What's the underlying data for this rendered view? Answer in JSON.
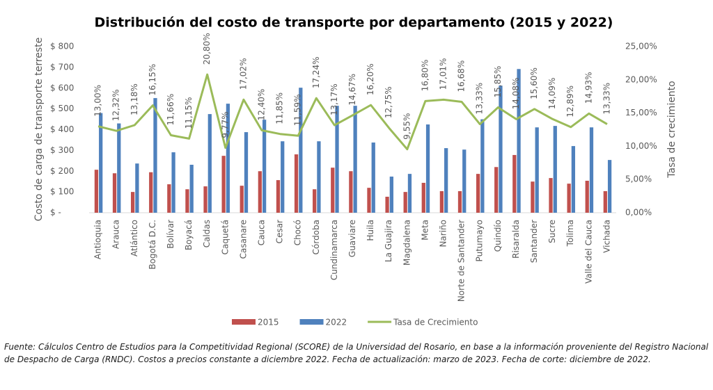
{
  "chart_data": {
    "type": "bar-line",
    "title": "Distribución del costo de transporte por departamento (2015 y 2022)",
    "y_label": "Costo de carga de transporte terreste",
    "y2_label": "Tasa de crecimiento",
    "categories": [
      "Antioquia",
      "Arauca",
      "Atlántico",
      "Bogotá D.C.",
      "Bolívar",
      "Boyacá",
      "Caldas",
      "Caquetá",
      "Casanare",
      "Cauca",
      "Cesar",
      "Chocó",
      "Córdoba",
      "Cundinamarca",
      "Guaviare",
      "Huila",
      "La Guajira",
      "Magdalena",
      "Meta",
      "Nariño",
      "Norte de Santander",
      "Putumayo",
      "Quindío",
      "Risaralda",
      "Santander",
      "Sucre",
      "Tolima",
      "Valle del Cauca",
      "Vichada"
    ],
    "ylim": [
      0,
      800
    ],
    "yticks": [
      {
        "value": 0,
        "label": "$ -"
      },
      {
        "value": 100,
        "label": "$ 100"
      },
      {
        "value": 200,
        "label": "$ 200"
      },
      {
        "value": 300,
        "label": "$ 300"
      },
      {
        "value": 400,
        "label": "$ 400"
      },
      {
        "value": 500,
        "label": "$ 500"
      },
      {
        "value": 600,
        "label": "$ 600"
      },
      {
        "value": 700,
        "label": "$ 700"
      },
      {
        "value": 800,
        "label": "$ 800"
      }
    ],
    "y2lim": [
      0,
      25
    ],
    "y2ticks": [
      {
        "value": 0,
        "label": "0,00%"
      },
      {
        "value": 5,
        "label": "5,00%"
      },
      {
        "value": 10,
        "label": "10,00%"
      },
      {
        "value": 15,
        "label": "15,00%"
      },
      {
        "value": 20,
        "label": "20,00%"
      },
      {
        "value": 25,
        "label": "25,00%"
      }
    ],
    "series": [
      {
        "name": "2015",
        "color": "#c0504d",
        "kind": "bar",
        "values": [
          207,
          190,
          100,
          195,
          137,
          113,
          127,
          274,
          130,
          200,
          157,
          281,
          113,
          217,
          200,
          120,
          77,
          100,
          144,
          104,
          104,
          187,
          220,
          278,
          150,
          167,
          140,
          154,
          104
        ]
      },
      {
        "name": "2022",
        "color": "#4f81bd",
        "kind": "bar",
        "values": [
          480,
          430,
          237,
          552,
          291,
          231,
          475,
          525,
          388,
          448,
          344,
          602,
          344,
          515,
          515,
          338,
          174,
          187,
          425,
          311,
          304,
          450,
          612,
          692,
          411,
          418,
          321,
          411,
          254
        ]
      },
      {
        "name": "Tasa de Crecimiento",
        "color": "#9bbb59",
        "kind": "line",
        "axis": "y2",
        "values": [
          13.0,
          12.32,
          13.18,
          16.15,
          11.66,
          11.15,
          20.8,
          9.77,
          17.02,
          12.4,
          11.85,
          11.59,
          17.24,
          13.17,
          14.67,
          16.2,
          12.75,
          9.55,
          16.8,
          17.01,
          16.68,
          13.33,
          15.85,
          14.08,
          15.6,
          14.09,
          12.89,
          14.93,
          13.33
        ],
        "value_labels": [
          "13,00%",
          "12,32%",
          "13,18%",
          "16,15%",
          "11,66%",
          "11,15%",
          "20,80%",
          "9,77%",
          "17,02%",
          "12,40%",
          "11,85%",
          "11,59%",
          "17,24%",
          "13,17%",
          "14,67%",
          "16,20%",
          "12,75%",
          "9,55%",
          "16,80%",
          "17,01%",
          "16,68%",
          "13,33%",
          "15,85%",
          "14,08%",
          "15,60%",
          "14,09%",
          "12,89%",
          "14,93%",
          "13,33%"
        ]
      }
    ],
    "note": "Fuente: Cálculos Centro de Estudios para la Competitividad Regional (SCORE) de la Universidad del Rosario, en base a la información proveniente del Registro Nacional de Despacho de Carga (RNDC). Costos a precios constante a diciembre 2022. Fecha de actualización: marzo de 2023. Fecha de corte: diciembre de 2022."
  }
}
